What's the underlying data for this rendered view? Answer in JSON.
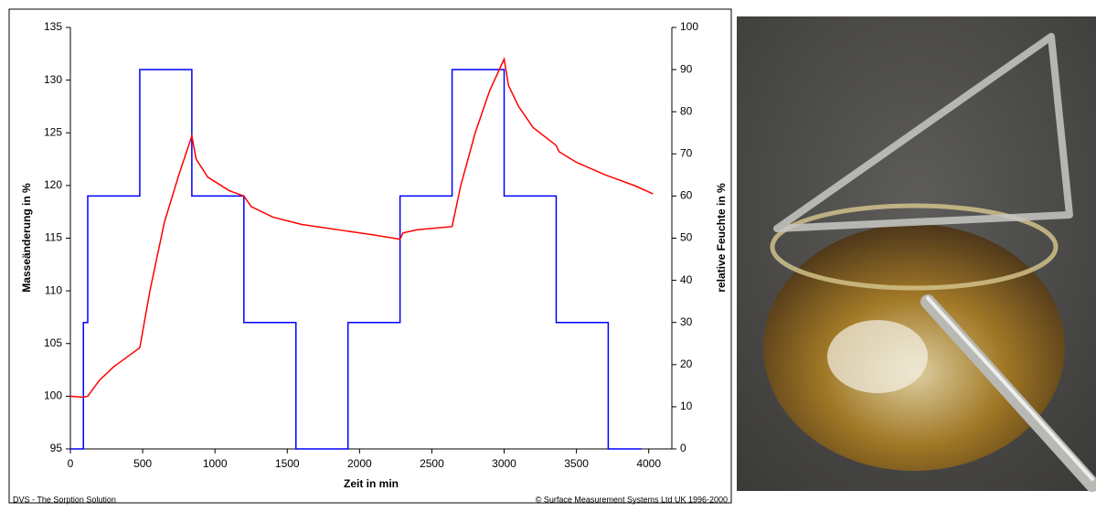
{
  "chart_data": {
    "type": "line",
    "x_label": "Zeit in min",
    "y_label": "Masseänderung in %",
    "y2_label": "relative Feuchte in %",
    "footer_left": "DVS - The Sorption Solution",
    "footer_right": "© Surface Measurement Systems Ltd UK 1996-2000",
    "xlim": [
      0,
      4160
    ],
    "xticks": [
      0,
      500,
      1000,
      1500,
      2000,
      2500,
      3000,
      3500,
      4000
    ],
    "ylim": [
      95,
      135
    ],
    "yticks": [
      95,
      100,
      105,
      110,
      115,
      120,
      125,
      130,
      135
    ],
    "y2lim": [
      0,
      100
    ],
    "y2ticks": [
      0,
      10,
      20,
      30,
      40,
      50,
      60,
      70,
      80,
      90,
      100
    ],
    "grid": false,
    "series": [
      {
        "color": "#0000ff",
        "axis": "y2",
        "x": [
          0,
          90,
          90,
          120,
          120,
          480,
          480,
          840,
          840,
          1200,
          1200,
          1560,
          1560,
          1920,
          1920,
          2280,
          2280,
          2640,
          2640,
          3000,
          3000,
          3360,
          3360,
          3720,
          3720,
          3950
        ],
        "values": [
          0,
          0,
          30,
          30,
          60,
          60,
          90,
          90,
          60,
          60,
          30,
          30,
          0,
          0,
          30,
          30,
          60,
          60,
          90,
          90,
          60,
          60,
          30,
          30,
          0,
          0
        ]
      },
      {
        "color": "#ff0000",
        "x": [
          0,
          90,
          120,
          200,
          300,
          480,
          550,
          650,
          750,
          840,
          870,
          950,
          1100,
          1200,
          1250,
          1400,
          1600,
          1900,
          2100,
          2280,
          2300,
          2400,
          2640,
          2700,
          2800,
          2900,
          3000,
          3030,
          3100,
          3200,
          3360,
          3380,
          3500,
          3700,
          3900,
          4030
        ],
        "values": [
          100,
          99.9,
          100,
          101.5,
          102.8,
          104.6,
          110,
          116.5,
          121,
          124.7,
          122.5,
          120.8,
          119.5,
          119,
          118,
          117,
          116.3,
          115.7,
          115.3,
          114.9,
          115.5,
          115.8,
          116.1,
          120,
          125,
          129,
          132,
          129.5,
          127.5,
          125.5,
          123.8,
          123.2,
          122.2,
          121,
          120,
          119.2
        ]
      }
    ]
  }
}
